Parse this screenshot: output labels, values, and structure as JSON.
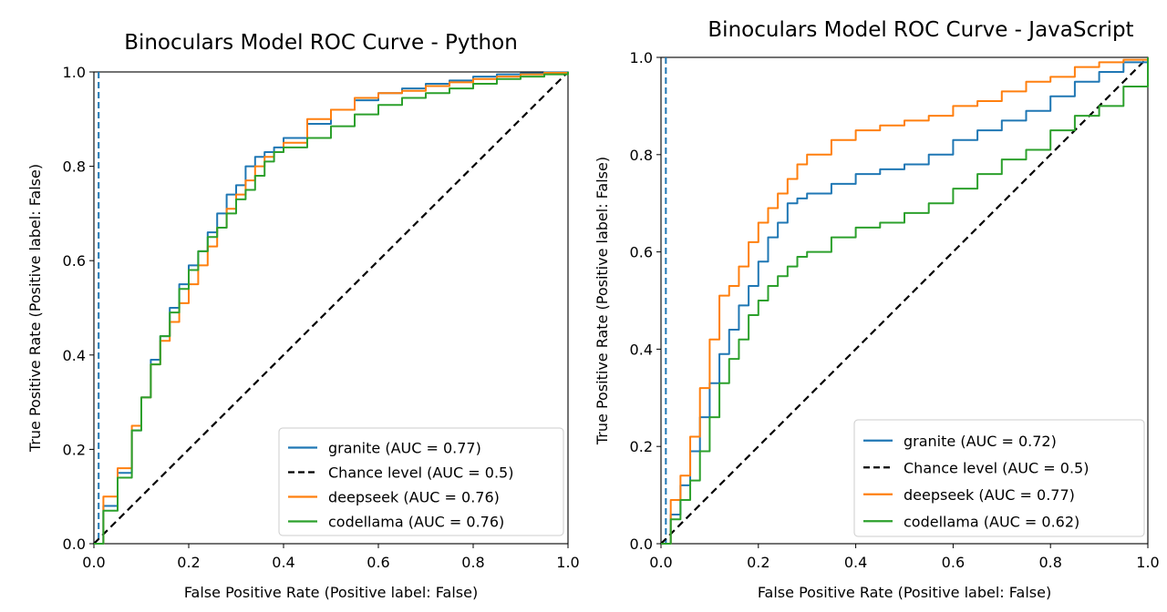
{
  "chart_data": [
    {
      "type": "line",
      "title": "Binoculars Model ROC Curve - Python",
      "xlabel": "False Positive Rate (Positive label: False)",
      "ylabel": "True Positive Rate (Positive label: False)",
      "xlim": [
        0,
        1
      ],
      "ylim": [
        0,
        1
      ],
      "xticks": [
        "0.0",
        "0.2",
        "0.4",
        "0.6",
        "0.8",
        "1.0"
      ],
      "yticks": [
        "0.0",
        "0.2",
        "0.4",
        "0.6",
        "0.8",
        "1.0"
      ],
      "grid": false,
      "legend_position": "lower-right",
      "threshold_line_x": 0.01,
      "series": [
        {
          "name": "granite (AUC = 0.77)",
          "color": "#1f77b4",
          "style": "solid",
          "x": [
            0,
            0.02,
            0.05,
            0.08,
            0.1,
            0.12,
            0.14,
            0.16,
            0.18,
            0.2,
            0.22,
            0.24,
            0.26,
            0.28,
            0.3,
            0.32,
            0.34,
            0.36,
            0.38,
            0.4,
            0.45,
            0.5,
            0.55,
            0.6,
            0.65,
            0.7,
            0.75,
            0.8,
            0.85,
            0.9,
            0.95,
            1.0
          ],
          "y": [
            0,
            0.08,
            0.15,
            0.24,
            0.31,
            0.39,
            0.44,
            0.5,
            0.55,
            0.59,
            0.62,
            0.66,
            0.7,
            0.74,
            0.76,
            0.8,
            0.82,
            0.83,
            0.84,
            0.86,
            0.89,
            0.92,
            0.94,
            0.955,
            0.965,
            0.975,
            0.982,
            0.99,
            0.995,
            0.997,
            0.999,
            1.0
          ]
        },
        {
          "name": "Chance level (AUC = 0.5)",
          "color": "#000000",
          "style": "dashed",
          "x": [
            0,
            1
          ],
          "y": [
            0,
            1
          ]
        },
        {
          "name": "deepseek (AUC = 0.76)",
          "color": "#ff7f0e",
          "style": "solid",
          "x": [
            0,
            0.02,
            0.05,
            0.08,
            0.1,
            0.12,
            0.14,
            0.16,
            0.18,
            0.2,
            0.22,
            0.24,
            0.26,
            0.28,
            0.3,
            0.32,
            0.34,
            0.36,
            0.38,
            0.4,
            0.45,
            0.5,
            0.55,
            0.6,
            0.65,
            0.7,
            0.75,
            0.8,
            0.85,
            0.9,
            0.95,
            1.0
          ],
          "y": [
            0,
            0.1,
            0.16,
            0.25,
            0.31,
            0.38,
            0.43,
            0.47,
            0.51,
            0.55,
            0.59,
            0.63,
            0.67,
            0.71,
            0.74,
            0.77,
            0.8,
            0.82,
            0.83,
            0.85,
            0.9,
            0.92,
            0.945,
            0.955,
            0.96,
            0.97,
            0.978,
            0.985,
            0.99,
            0.995,
            0.998,
            1.0
          ]
        },
        {
          "name": "codellama (AUC = 0.76)",
          "color": "#2ca02c",
          "style": "solid",
          "x": [
            0,
            0.02,
            0.05,
            0.08,
            0.1,
            0.12,
            0.14,
            0.16,
            0.18,
            0.2,
            0.22,
            0.24,
            0.26,
            0.28,
            0.3,
            0.32,
            0.34,
            0.36,
            0.38,
            0.4,
            0.45,
            0.5,
            0.55,
            0.6,
            0.65,
            0.7,
            0.75,
            0.8,
            0.85,
            0.9,
            0.95,
            1.0
          ],
          "y": [
            0,
            0.07,
            0.14,
            0.24,
            0.31,
            0.38,
            0.44,
            0.49,
            0.54,
            0.58,
            0.62,
            0.65,
            0.67,
            0.7,
            0.73,
            0.75,
            0.78,
            0.81,
            0.83,
            0.84,
            0.86,
            0.885,
            0.91,
            0.93,
            0.945,
            0.955,
            0.965,
            0.975,
            0.985,
            0.99,
            0.995,
            1.0
          ]
        }
      ]
    },
    {
      "type": "line",
      "title": "Binoculars Model ROC Curve - JavaScript",
      "xlabel": "False Positive Rate (Positive label: False)",
      "ylabel": "True Positive Rate (Positive label: False)",
      "xlim": [
        0,
        1
      ],
      "ylim": [
        0,
        1
      ],
      "xticks": [
        "0.0",
        "0.2",
        "0.4",
        "0.6",
        "0.8",
        "1.0"
      ],
      "yticks": [
        "0.0",
        "0.2",
        "0.4",
        "0.6",
        "0.8",
        "1.0"
      ],
      "grid": false,
      "legend_position": "lower-right",
      "threshold_line_x": 0.01,
      "series": [
        {
          "name": "granite (AUC = 0.72)",
          "color": "#1f77b4",
          "style": "solid",
          "x": [
            0,
            0.02,
            0.04,
            0.06,
            0.08,
            0.1,
            0.12,
            0.14,
            0.16,
            0.18,
            0.2,
            0.22,
            0.24,
            0.26,
            0.28,
            0.3,
            0.35,
            0.4,
            0.45,
            0.5,
            0.55,
            0.6,
            0.65,
            0.7,
            0.75,
            0.8,
            0.85,
            0.9,
            0.95,
            1.0
          ],
          "y": [
            0,
            0.06,
            0.12,
            0.19,
            0.26,
            0.33,
            0.39,
            0.44,
            0.49,
            0.53,
            0.58,
            0.63,
            0.66,
            0.7,
            0.71,
            0.72,
            0.74,
            0.76,
            0.77,
            0.78,
            0.8,
            0.83,
            0.85,
            0.87,
            0.89,
            0.92,
            0.95,
            0.97,
            0.99,
            1.0
          ]
        },
        {
          "name": "Chance level (AUC = 0.5)",
          "color": "#000000",
          "style": "dashed",
          "x": [
            0,
            1
          ],
          "y": [
            0,
            1
          ]
        },
        {
          "name": "deepseek (AUC = 0.77)",
          "color": "#ff7f0e",
          "style": "solid",
          "x": [
            0,
            0.02,
            0.04,
            0.06,
            0.08,
            0.1,
            0.12,
            0.14,
            0.16,
            0.18,
            0.2,
            0.22,
            0.24,
            0.26,
            0.28,
            0.3,
            0.35,
            0.4,
            0.45,
            0.5,
            0.55,
            0.6,
            0.65,
            0.7,
            0.75,
            0.8,
            0.85,
            0.9,
            0.95,
            1.0
          ],
          "y": [
            0,
            0.09,
            0.14,
            0.22,
            0.32,
            0.42,
            0.51,
            0.53,
            0.57,
            0.62,
            0.66,
            0.69,
            0.72,
            0.75,
            0.78,
            0.8,
            0.83,
            0.85,
            0.86,
            0.87,
            0.88,
            0.9,
            0.91,
            0.93,
            0.95,
            0.96,
            0.98,
            0.99,
            0.995,
            1.0
          ]
        },
        {
          "name": "codellama (AUC = 0.62)",
          "color": "#2ca02c",
          "style": "solid",
          "x": [
            0,
            0.02,
            0.04,
            0.06,
            0.08,
            0.1,
            0.12,
            0.14,
            0.16,
            0.18,
            0.2,
            0.22,
            0.24,
            0.26,
            0.28,
            0.3,
            0.35,
            0.4,
            0.45,
            0.5,
            0.55,
            0.6,
            0.65,
            0.7,
            0.75,
            0.8,
            0.85,
            0.9,
            0.95,
            1.0
          ],
          "y": [
            0,
            0.05,
            0.09,
            0.13,
            0.19,
            0.26,
            0.33,
            0.38,
            0.42,
            0.47,
            0.5,
            0.53,
            0.55,
            0.57,
            0.59,
            0.6,
            0.63,
            0.65,
            0.66,
            0.68,
            0.7,
            0.73,
            0.76,
            0.79,
            0.81,
            0.85,
            0.88,
            0.9,
            0.94,
            1.0
          ]
        }
      ]
    }
  ]
}
